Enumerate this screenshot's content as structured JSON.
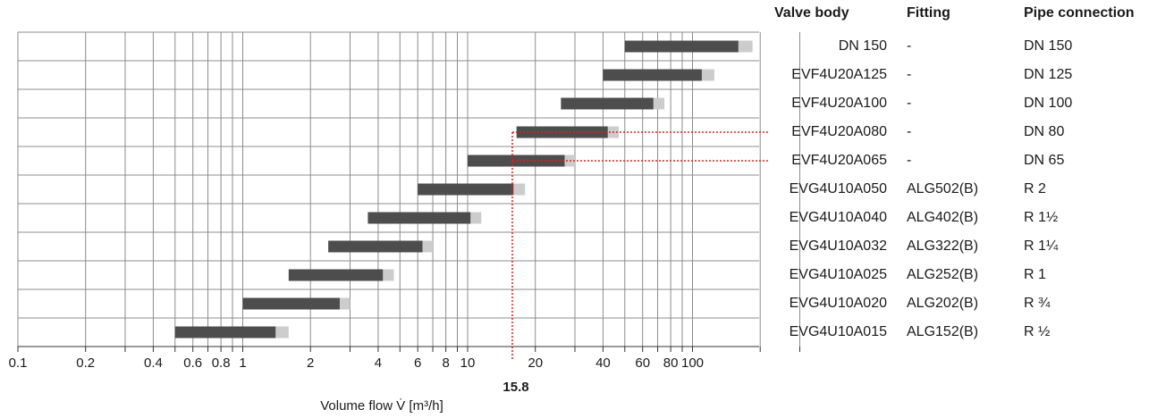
{
  "table": {
    "headers": {
      "body": "Valve body",
      "fitting": "Fitting",
      "pipe": "Pipe connection"
    },
    "rows": [
      {
        "body": "DN 150",
        "fitting": "-",
        "pipe": "DN 150"
      },
      {
        "body": "EVF4U20A125",
        "fitting": "-",
        "pipe": "DN 125"
      },
      {
        "body": "EVF4U20A100",
        "fitting": "-",
        "pipe": "DN 100"
      },
      {
        "body": "EVF4U20A080",
        "fitting": "-",
        "pipe": "DN 80"
      },
      {
        "body": "EVF4U20A065",
        "fitting": "-",
        "pipe": "DN 65"
      },
      {
        "body": "EVG4U10A050",
        "fitting": "ALG502(B)",
        "pipe": "R 2"
      },
      {
        "body": "EVG4U10A040",
        "fitting": "ALG402(B)",
        "pipe": "R 1½"
      },
      {
        "body": "EVG4U10A032",
        "fitting": "ALG322(B)",
        "pipe": "R 1¼"
      },
      {
        "body": "EVG4U10A025",
        "fitting": "ALG252(B)",
        "pipe": "R 1"
      },
      {
        "body": "EVG4U10A020",
        "fitting": "ALG202(B)",
        "pipe": "R ¾"
      },
      {
        "body": "EVG4U10A015",
        "fitting": "ALG152(B)",
        "pipe": "R ½"
      }
    ]
  },
  "chart_data": {
    "type": "bar",
    "orientation": "horizontal-range",
    "xscale": "log",
    "xlim": [
      0.1,
      300
    ],
    "xlabel": "Volume flow V̇ [m³/h]",
    "xticks": [
      {
        "value": 0.1,
        "label": "0.1"
      },
      {
        "value": 0.2,
        "label": "0.2"
      },
      {
        "value": 0.4,
        "label": "0.4"
      },
      {
        "value": 0.6,
        "label": "0.6"
      },
      {
        "value": 0.8,
        "label": "0.8"
      },
      {
        "value": 1,
        "label": "1"
      },
      {
        "value": 2,
        "label": "2"
      },
      {
        "value": 4,
        "label": "4"
      },
      {
        "value": 6,
        "label": "6"
      },
      {
        "value": 8,
        "label": "8"
      },
      {
        "value": 10,
        "label": "10"
      },
      {
        "value": 20,
        "label": "20"
      },
      {
        "value": 40,
        "label": "40"
      },
      {
        "value": 60,
        "label": "60"
      },
      {
        "value": 80,
        "label": "80"
      },
      {
        "value": 100,
        "label": "100"
      }
    ],
    "gridlines": [
      0.1,
      0.2,
      0.3,
      0.4,
      0.5,
      0.6,
      0.7,
      0.8,
      0.9,
      1,
      2,
      3,
      4,
      5,
      6,
      7,
      8,
      9,
      10,
      20,
      30,
      40,
      50,
      60,
      70,
      80,
      90,
      100,
      200,
      300
    ],
    "rows": [
      {
        "label": "DN 150",
        "start": 50,
        "end": 160,
        "ext": 185
      },
      {
        "label": "EVF4U20A125",
        "start": 40,
        "end": 110,
        "ext": 125
      },
      {
        "label": "EVF4U20A100",
        "start": 26,
        "end": 67,
        "ext": 75
      },
      {
        "label": "EVF4U20A080",
        "start": 16.5,
        "end": 42,
        "ext": 47
      },
      {
        "label": "EVF4U20A065",
        "start": 10,
        "end": 27,
        "ext": 30
      },
      {
        "label": "EVG4U10A050",
        "start": 6,
        "end": 16,
        "ext": 18
      },
      {
        "label": "EVG4U10A040",
        "start": 3.6,
        "end": 10.3,
        "ext": 11.5
      },
      {
        "label": "EVG4U10A032",
        "start": 2.4,
        "end": 6.3,
        "ext": 7
      },
      {
        "label": "EVG4U10A025",
        "start": 1.6,
        "end": 4.2,
        "ext": 4.7
      },
      {
        "label": "EVG4U10A020",
        "start": 1.0,
        "end": 2.7,
        "ext": 3.0
      },
      {
        "label": "EVG4U10A015",
        "start": 0.5,
        "end": 1.4,
        "ext": 1.6
      }
    ],
    "highlight": {
      "value": 15.8,
      "label": "15.8",
      "rows": [
        "EVF4U20A080",
        "EVF4U20A065"
      ]
    },
    "colors": {
      "bar": "#4d4d4d",
      "ext": "#cccccc",
      "grid": "#8c8c8c",
      "highlight": "#e0201b"
    }
  }
}
